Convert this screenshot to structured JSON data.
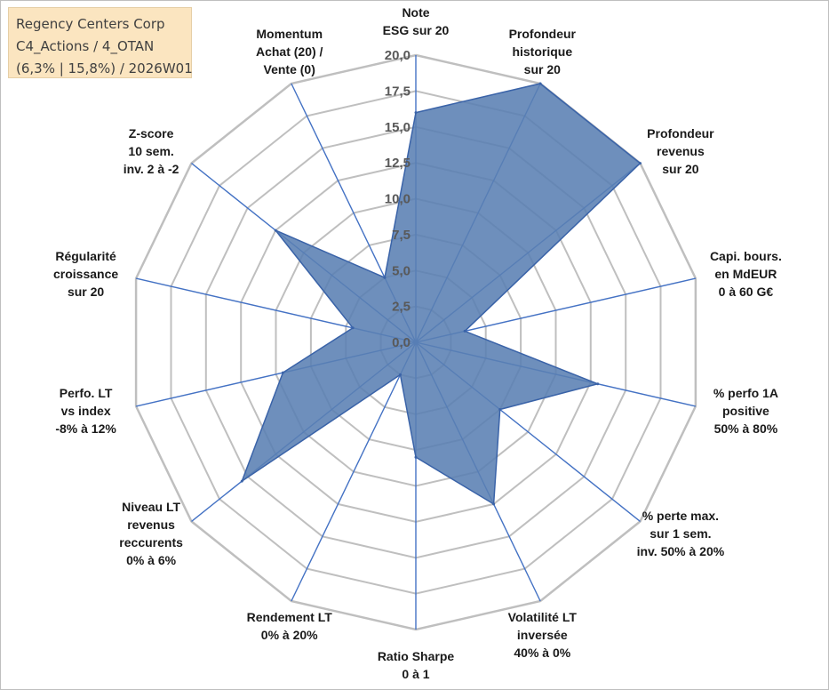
{
  "title_box": {
    "line1": "Regency Centers Corp",
    "line2": "C4_Actions / 4_OTAN",
    "line3": "(6,3% | 15,8%) / 2026W01"
  },
  "chart_data": {
    "type": "radar",
    "axes": [
      {
        "label": [
          "Note",
          "ESG sur 20"
        ],
        "value": 16.0
      },
      {
        "label": [
          "Profondeur",
          "historique",
          "sur 20"
        ],
        "value": 20.0
      },
      {
        "label": [
          "Profondeur",
          "revenus",
          "sur 20"
        ],
        "value": 20.0
      },
      {
        "label": [
          "Capi. bours.",
          "en MdEUR",
          "0 à 60 G€"
        ],
        "value": 3.5
      },
      {
        "label": [
          "% perfo 1A",
          "positive",
          "50% à 80%"
        ],
        "value": 13.0
      },
      {
        "label": [
          "% perte max.",
          "sur 1 sem.",
          "inv. 50% à 20%"
        ],
        "value": 7.5
      },
      {
        "label": [
          "Volatilité LT",
          "inversée",
          "40% à 0%"
        ],
        "value": 12.5
      },
      {
        "label": [
          "Ratio Sharpe",
          "0 à 1"
        ],
        "value": 8.0
      },
      {
        "label": [
          "Rendement LT",
          "0% à 20%"
        ],
        "value": 2.5
      },
      {
        "label": [
          "Niveau LT",
          "revenus",
          "reccurents",
          "0% à 6%"
        ],
        "value": 15.5
      },
      {
        "label": [
          "Perfo. LT",
          "vs index",
          "-8% à 12%"
        ],
        "value": 9.5
      },
      {
        "label": [
          "Régularité",
          "croissance",
          "sur 20"
        ],
        "value": 4.5
      },
      {
        "label": [
          "Z-score",
          "10 sem.",
          "inv. 2 à -2"
        ],
        "value": 12.5
      },
      {
        "label": [
          "Momentum",
          "Achat (20) /",
          "Vente (0)"
        ],
        "value": 5.0
      }
    ],
    "rmin": 0,
    "rmax": 20,
    "step": 2.5,
    "tick_labels": [
      "0,0",
      "2,5",
      "5,0",
      "7,5",
      "10,0",
      "12,5",
      "15,0",
      "17,5",
      "20,0"
    ],
    "grid": true,
    "fill_color": "#5a80b3",
    "line_color": "#3a63a8",
    "grid_color": "#bfbfbf",
    "spoke_color": "#4472c4"
  }
}
